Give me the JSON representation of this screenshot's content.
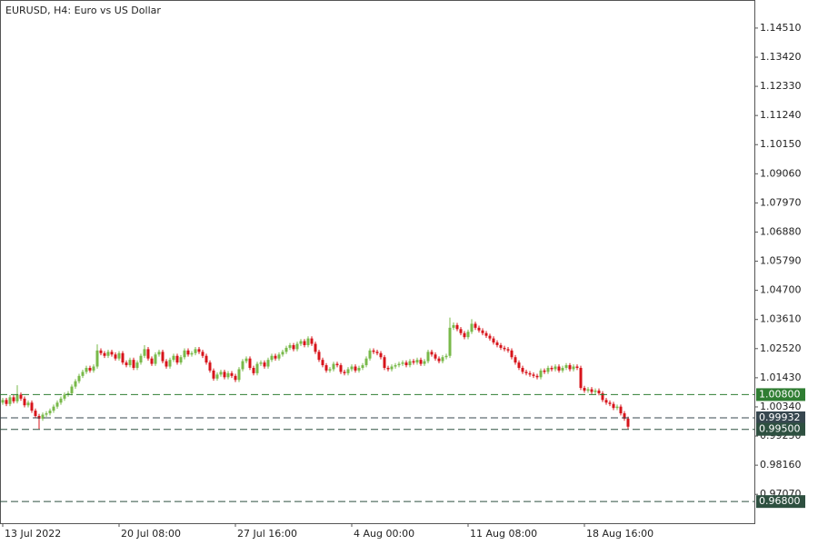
{
  "chart_data": {
    "type": "candlestick",
    "title": "EURUSD, H4:  Euro vs US Dollar",
    "bull_color": "#78b94a",
    "bear_color": "#d7141b",
    "xlim": [
      -0.75,
      206.75
    ],
    "xticks": [
      {
        "value": 0,
        "label": "13 Jul 2022"
      },
      {
        "value": 32,
        "label": "20 Jul 08:00"
      },
      {
        "value": 64,
        "label": "27 Jul 16:00"
      },
      {
        "value": 96,
        "label": "4 Aug 00:00"
      },
      {
        "value": 128,
        "label": "11 Aug 08:00"
      },
      {
        "value": 160,
        "label": "18 Aug 16:00"
      }
    ],
    "ylim": [
      0.9599,
      1.1556
    ],
    "yticks": [
      {
        "value": 1.1451,
        "label": "1.14510"
      },
      {
        "value": 1.1342,
        "label": "1.13420"
      },
      {
        "value": 1.1233,
        "label": "1.12330"
      },
      {
        "value": 1.1124,
        "label": "1.11240"
      },
      {
        "value": 1.1015,
        "label": "1.10150"
      },
      {
        "value": 1.0906,
        "label": "1.09060"
      },
      {
        "value": 1.0797,
        "label": "1.07970"
      },
      {
        "value": 1.0688,
        "label": "1.06880"
      },
      {
        "value": 1.0579,
        "label": "1.05790"
      },
      {
        "value": 1.047,
        "label": "1.04700"
      },
      {
        "value": 1.0361,
        "label": "1.03610"
      },
      {
        "value": 1.0252,
        "label": "1.02520"
      },
      {
        "value": 1.0143,
        "label": "1.01430"
      },
      {
        "value": 1.0034,
        "label": "1.00340"
      },
      {
        "value": 0.9925,
        "label": "0.99250"
      },
      {
        "value": 0.9816,
        "label": "0.98160"
      },
      {
        "value": 0.9707,
        "label": "0.97070"
      }
    ],
    "levels": [
      {
        "value": 1.008,
        "label": "1.00800",
        "color": "#2f7d32"
      },
      {
        "value": 0.99932,
        "label": "0.99932",
        "color": "#37474f"
      },
      {
        "value": 0.995,
        "label": "0.99500",
        "color": "#2e5040"
      },
      {
        "value": 0.968,
        "label": "0.96800",
        "color": "#2e5040"
      }
    ],
    "open": [
      1.005,
      1.006,
      1.0045,
      1.007,
      1.0055,
      1.008,
      1.0065,
      1.004,
      1.005,
      1.002,
      1.0,
      0.999,
      1.0005,
      1.001,
      1.002,
      1.0035,
      1.005,
      1.0065,
      1.008,
      1.0085,
      1.011,
      1.013,
      1.015,
      1.0165,
      1.018,
      1.017,
      1.0185,
      1.0245,
      1.0235,
      1.0225,
      1.024,
      1.023,
      1.0215,
      1.0235,
      1.02,
      1.019,
      1.021,
      1.018,
      1.02,
      1.0225,
      1.025,
      1.0215,
      1.0195,
      1.023,
      1.024,
      1.0205,
      1.0185,
      1.021,
      1.0225,
      1.02,
      1.022,
      1.0245,
      1.023,
      1.0235,
      1.025,
      1.024,
      1.0225,
      1.02,
      1.017,
      1.014,
      1.0155,
      1.0165,
      1.0145,
      1.016,
      1.015,
      1.0135,
      1.0175,
      1.0205,
      1.0215,
      1.018,
      1.016,
      1.0195,
      1.02,
      1.0185,
      1.021,
      1.0225,
      1.0215,
      1.023,
      1.024,
      1.0255,
      1.0265,
      1.025,
      1.027,
      1.028,
      1.0265,
      1.029,
      1.027,
      1.024,
      1.021,
      1.019,
      1.017,
      1.0175,
      1.0195,
      1.019,
      1.0165,
      1.016,
      1.0175,
      1.0185,
      1.017,
      1.018,
      1.019,
      1.0215,
      1.0245,
      1.024,
      1.0235,
      1.022,
      1.018,
      1.0175,
      1.0185,
      1.019,
      1.0195,
      1.02,
      1.019,
      1.0205,
      1.02,
      1.021,
      1.0195,
      1.0205,
      1.024,
      1.023,
      1.0215,
      1.0205,
      1.022,
      1.0225,
      1.033,
      1.034,
      1.0325,
      1.031,
      1.0295,
      1.0315,
      1.0345,
      1.033,
      1.032,
      1.031,
      1.03,
      1.029,
      1.0275,
      1.0265,
      1.0255,
      1.025,
      1.0245,
      1.022,
      1.02,
      1.018,
      1.0165,
      1.016,
      1.0155,
      1.015,
      1.0145,
      1.017,
      1.0165,
      1.018,
      1.0175,
      1.0185,
      1.017,
      1.018,
      1.019,
      1.0175,
      1.0185,
      1.018,
      1.0105,
      1.0095,
      1.01,
      1.009,
      1.0095,
      1.0085,
      1.006,
      1.005,
      1.0045,
      1.003,
      1.0035,
      1.001,
      0.999
    ],
    "high": [
      1.0068,
      1.0068,
      1.0078,
      1.0078,
      1.0115,
      1.0088,
      1.0073,
      1.0058,
      1.0058,
      1.0028,
      1.0008,
      1.0013,
      1.0018,
      1.0028,
      1.0043,
      1.0058,
      1.0073,
      1.0088,
      1.0093,
      1.0118,
      1.0138,
      1.0158,
      1.0173,
      1.0188,
      1.0188,
      1.0193,
      1.0268,
      1.0253,
      1.0243,
      1.0248,
      1.0248,
      1.0238,
      1.0243,
      1.0243,
      1.0208,
      1.0218,
      1.0218,
      1.0208,
      1.0233,
      1.0265,
      1.0258,
      1.0223,
      1.0238,
      1.0248,
      1.0248,
      1.0213,
      1.0218,
      1.0233,
      1.0233,
      1.0228,
      1.0253,
      1.0253,
      1.0243,
      1.0258,
      1.0258,
      1.0248,
      1.0233,
      1.0208,
      1.0178,
      1.0163,
      1.0173,
      1.0173,
      1.0168,
      1.0168,
      1.0158,
      1.0183,
      1.0213,
      1.0223,
      1.0223,
      1.0188,
      1.0203,
      1.0208,
      1.0208,
      1.0218,
      1.0233,
      1.0233,
      1.0238,
      1.0248,
      1.0263,
      1.0273,
      1.0273,
      1.0278,
      1.0288,
      1.0288,
      1.0298,
      1.0298,
      1.0278,
      1.0248,
      1.0218,
      1.0198,
      1.0183,
      1.0203,
      1.0203,
      1.0198,
      1.0173,
      1.0183,
      1.0193,
      1.0193,
      1.0188,
      1.0198,
      1.0223,
      1.0253,
      1.0253,
      1.0248,
      1.0243,
      1.0228,
      1.0188,
      1.0193,
      1.0198,
      1.0203,
      1.0208,
      1.0208,
      1.0213,
      1.0213,
      1.0218,
      1.0218,
      1.0213,
      1.0248,
      1.0248,
      1.0238,
      1.0223,
      1.0228,
      1.0233,
      1.0368,
      1.035,
      1.0348,
      1.0333,
      1.0318,
      1.0323,
      1.0362,
      1.0353,
      1.0338,
      1.0328,
      1.0318,
      1.0308,
      1.0298,
      1.0283,
      1.0273,
      1.0263,
      1.0258,
      1.0253,
      1.0228,
      1.0208,
      1.0188,
      1.0173,
      1.0168,
      1.0163,
      1.0158,
      1.0178,
      1.0178,
      1.0188,
      1.0188,
      1.0193,
      1.0193,
      1.0188,
      1.0198,
      1.0198,
      1.0193,
      1.0193,
      1.0188,
      1.0113,
      1.0108,
      1.0108,
      1.0103,
      1.0103,
      1.0093,
      1.0068,
      1.0058,
      1.0053,
      1.0043,
      1.0043,
      1.0018,
      0.9998
    ],
    "low": [
      1.0042,
      1.0037,
      1.0037,
      1.0047,
      1.0047,
      1.0057,
      1.0032,
      1.0032,
      1.0012,
      0.9992,
      0.9952,
      0.9982,
      0.9997,
      1.0002,
      1.0012,
      1.0027,
      1.0042,
      1.0057,
      1.0072,
      1.0077,
      1.0102,
      1.0122,
      1.0142,
      1.0157,
      1.0162,
      1.0162,
      1.0177,
      1.0227,
      1.0217,
      1.0217,
      1.0222,
      1.0207,
      1.0207,
      1.0192,
      1.0182,
      1.0182,
      1.0172,
      1.0172,
      1.0192,
      1.0217,
      1.0207,
      1.0187,
      1.0187,
      1.0222,
      1.0197,
      1.0177,
      1.0177,
      1.0202,
      1.0192,
      1.0192,
      1.0212,
      1.0222,
      1.0222,
      1.0227,
      1.0232,
      1.0217,
      1.0192,
      1.0162,
      1.0132,
      1.0132,
      1.0147,
      1.0137,
      1.0137,
      1.0142,
      1.0127,
      1.0127,
      1.0167,
      1.0197,
      1.0172,
      1.0152,
      1.0152,
      1.0187,
      1.0177,
      1.0177,
      1.0202,
      1.0207,
      1.0207,
      1.0222,
      1.0232,
      1.0247,
      1.0242,
      1.0242,
      1.0262,
      1.0257,
      1.0257,
      1.0262,
      1.0232,
      1.0202,
      1.0182,
      1.0162,
      1.0162,
      1.0167,
      1.0182,
      1.0157,
      1.0152,
      1.0152,
      1.0167,
      1.0162,
      1.0162,
      1.0172,
      1.0182,
      1.0207,
      1.0232,
      1.0227,
      1.0212,
      1.0172,
      1.0167,
      1.0167,
      1.0177,
      1.0182,
      1.0187,
      1.0182,
      1.0182,
      1.0192,
      1.0192,
      1.0187,
      1.0187,
      1.0197,
      1.0222,
      1.0207,
      1.0197,
      1.0197,
      1.0212,
      1.0217,
      1.0322,
      1.0317,
      1.0302,
      1.0287,
      1.0287,
      1.0307,
      1.0322,
      1.0312,
      1.0302,
      1.0292,
      1.0282,
      1.0267,
      1.0257,
      1.0247,
      1.0242,
      1.0237,
      1.0212,
      1.0192,
      1.0172,
      1.0157,
      1.0152,
      1.0147,
      1.0142,
      1.0137,
      1.0137,
      1.0157,
      1.0157,
      1.0167,
      1.0167,
      1.0162,
      1.0162,
      1.0172,
      1.0167,
      1.0167,
      1.0172,
      1.0097,
      1.0087,
      1.0087,
      1.0082,
      1.0082,
      1.0077,
      1.0052,
      1.0042,
      1.0037,
      1.0022,
      1.0022,
      1.0002,
      0.9982,
      0.9952
    ],
    "close": [
      1.006,
      1.0045,
      1.007,
      1.0055,
      1.008,
      1.0065,
      1.004,
      1.005,
      1.002,
      1.0,
      0.999,
      1.0005,
      1.001,
      1.002,
      1.0035,
      1.005,
      1.0065,
      1.008,
      1.0085,
      1.011,
      1.013,
      1.015,
      1.0165,
      1.018,
      1.017,
      1.0185,
      1.0245,
      1.0235,
      1.0225,
      1.024,
      1.023,
      1.0215,
      1.0235,
      1.02,
      1.019,
      1.021,
      1.018,
      1.02,
      1.0225,
      1.025,
      1.0215,
      1.0195,
      1.023,
      1.024,
      1.0205,
      1.0185,
      1.021,
      1.0225,
      1.02,
      1.022,
      1.0245,
      1.023,
      1.0235,
      1.025,
      1.024,
      1.0225,
      1.02,
      1.017,
      1.014,
      1.0155,
      1.0165,
      1.0145,
      1.016,
      1.015,
      1.0135,
      1.0175,
      1.0205,
      1.0215,
      1.018,
      1.016,
      1.0195,
      1.02,
      1.0185,
      1.021,
      1.0225,
      1.0215,
      1.023,
      1.024,
      1.0255,
      1.0265,
      1.025,
      1.027,
      1.028,
      1.0265,
      1.029,
      1.027,
      1.024,
      1.021,
      1.019,
      1.017,
      1.0175,
      1.0195,
      1.019,
      1.0165,
      1.016,
      1.0175,
      1.0185,
      1.017,
      1.018,
      1.019,
      1.0215,
      1.0245,
      1.024,
      1.0235,
      1.022,
      1.018,
      1.0175,
      1.0185,
      1.019,
      1.0195,
      1.02,
      1.019,
      1.0205,
      1.02,
      1.021,
      1.0195,
      1.0205,
      1.024,
      1.023,
      1.0215,
      1.0205,
      1.022,
      1.0225,
      1.033,
      1.034,
      1.0325,
      1.031,
      1.0295,
      1.0315,
      1.0345,
      1.033,
      1.032,
      1.031,
      1.03,
      1.029,
      1.0275,
      1.0265,
      1.0255,
      1.025,
      1.0245,
      1.022,
      1.02,
      1.018,
      1.0165,
      1.016,
      1.0155,
      1.015,
      1.0145,
      1.017,
      1.0165,
      1.018,
      1.0175,
      1.0185,
      1.017,
      1.018,
      1.019,
      1.0175,
      1.0185,
      1.018,
      1.0105,
      1.0095,
      1.01,
      1.009,
      1.0095,
      1.0085,
      1.006,
      1.005,
      1.0045,
      1.003,
      1.0035,
      1.001,
      0.999,
      0.996
    ]
  }
}
